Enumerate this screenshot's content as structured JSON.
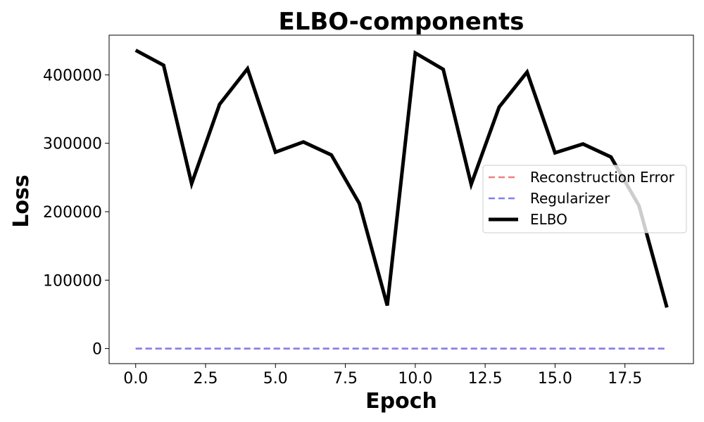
{
  "chart_data": {
    "type": "line",
    "title": "ELBO-components",
    "xlabel": "Epoch",
    "ylabel": "Loss",
    "xlim": [
      -0.95,
      19.95
    ],
    "ylim": [
      -22000,
      458000
    ],
    "xticks": [
      0.0,
      2.5,
      5.0,
      7.5,
      10.0,
      12.5,
      15.0,
      17.5
    ],
    "xtick_labels": [
      "0.0",
      "2.5",
      "5.0",
      "7.5",
      "10.0",
      "12.5",
      "15.0",
      "17.5"
    ],
    "yticks": [
      0,
      100000,
      200000,
      300000,
      400000
    ],
    "ytick_labels": [
      "0",
      "100000",
      "200000",
      "300000",
      "400000"
    ],
    "grid": false,
    "legend_placement": "center-right",
    "x": [
      0,
      1,
      2,
      3,
      4,
      5,
      6,
      7,
      8,
      9,
      10,
      11,
      12,
      13,
      14,
      15,
      16,
      17,
      18,
      19
    ],
    "series": [
      {
        "name": "Reconstruction Error",
        "color": "#f08080",
        "style": "dashed",
        "values": [
          0,
          0,
          0,
          0,
          0,
          0,
          0,
          0,
          0,
          0,
          0,
          0,
          0,
          0,
          0,
          0,
          0,
          0,
          0,
          0
        ]
      },
      {
        "name": "Regularizer",
        "color": "#8080f0",
        "style": "dashed",
        "values": [
          0,
          0,
          0,
          0,
          0,
          0,
          0,
          0,
          0,
          0,
          0,
          0,
          0,
          0,
          0,
          0,
          0,
          0,
          0,
          0
        ]
      },
      {
        "name": "ELBO",
        "color": "#000000",
        "style": "solid",
        "values": [
          436000,
          414000,
          241000,
          357000,
          409000,
          287000,
          302000,
          283000,
          212000,
          63000,
          432000,
          408000,
          240000,
          353000,
          404000,
          286000,
          299000,
          280000,
          209000,
          60000
        ]
      }
    ]
  }
}
